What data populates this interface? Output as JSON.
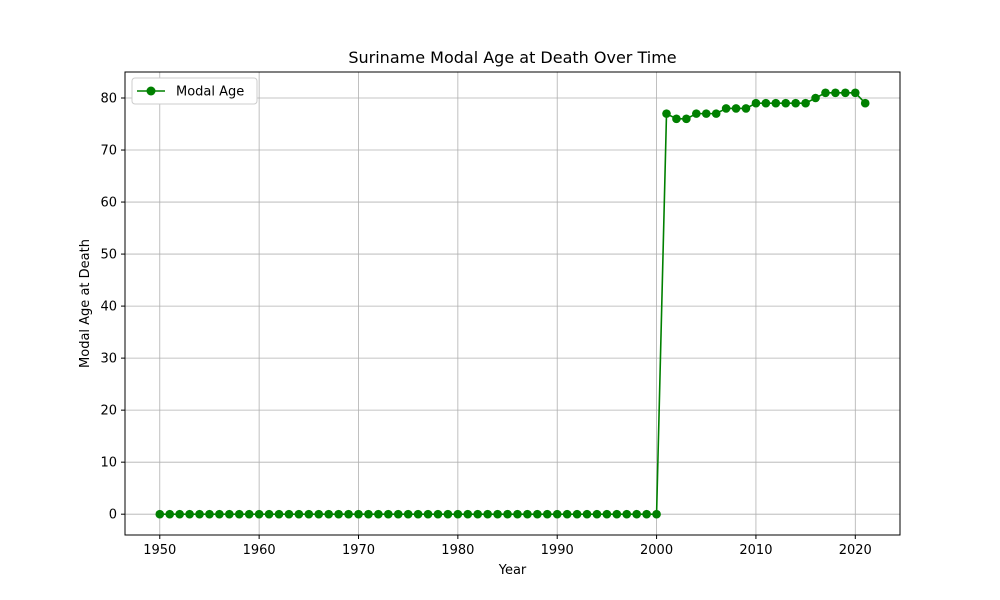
{
  "chart_data": {
    "type": "line",
    "title": "Suriname Modal Age at Death Over Time",
    "xlabel": "Year",
    "ylabel": "Modal Age at Death",
    "xlim": [
      1946.5,
      2024.5
    ],
    "ylim": [
      -4,
      85
    ],
    "x_ticks": [
      1950,
      1960,
      1970,
      1980,
      1990,
      2000,
      2010,
      2020
    ],
    "y_ticks": [
      0,
      10,
      20,
      30,
      40,
      50,
      60,
      70,
      80
    ],
    "grid": true,
    "legend_position": "top-left",
    "series": [
      {
        "name": "Modal Age",
        "color": "#008000",
        "marker": "circle",
        "x": [
          1950,
          1951,
          1952,
          1953,
          1954,
          1955,
          1956,
          1957,
          1958,
          1959,
          1960,
          1961,
          1962,
          1963,
          1964,
          1965,
          1966,
          1967,
          1968,
          1969,
          1970,
          1971,
          1972,
          1973,
          1974,
          1975,
          1976,
          1977,
          1978,
          1979,
          1980,
          1981,
          1982,
          1983,
          1984,
          1985,
          1986,
          1987,
          1988,
          1989,
          1990,
          1991,
          1992,
          1993,
          1994,
          1995,
          1996,
          1997,
          1998,
          1999,
          2000,
          2001,
          2002,
          2003,
          2004,
          2005,
          2006,
          2007,
          2008,
          2009,
          2010,
          2011,
          2012,
          2013,
          2014,
          2015,
          2016,
          2017,
          2018,
          2019,
          2020,
          2021
        ],
        "y": [
          0,
          0,
          0,
          0,
          0,
          0,
          0,
          0,
          0,
          0,
          0,
          0,
          0,
          0,
          0,
          0,
          0,
          0,
          0,
          0,
          0,
          0,
          0,
          0,
          0,
          0,
          0,
          0,
          0,
          0,
          0,
          0,
          0,
          0,
          0,
          0,
          0,
          0,
          0,
          0,
          0,
          0,
          0,
          0,
          0,
          0,
          0,
          0,
          0,
          0,
          0,
          77,
          76,
          76,
          77,
          77,
          77,
          78,
          78,
          78,
          79,
          79,
          79,
          79,
          79,
          79,
          80,
          81,
          81,
          81,
          81,
          79
        ]
      }
    ]
  }
}
